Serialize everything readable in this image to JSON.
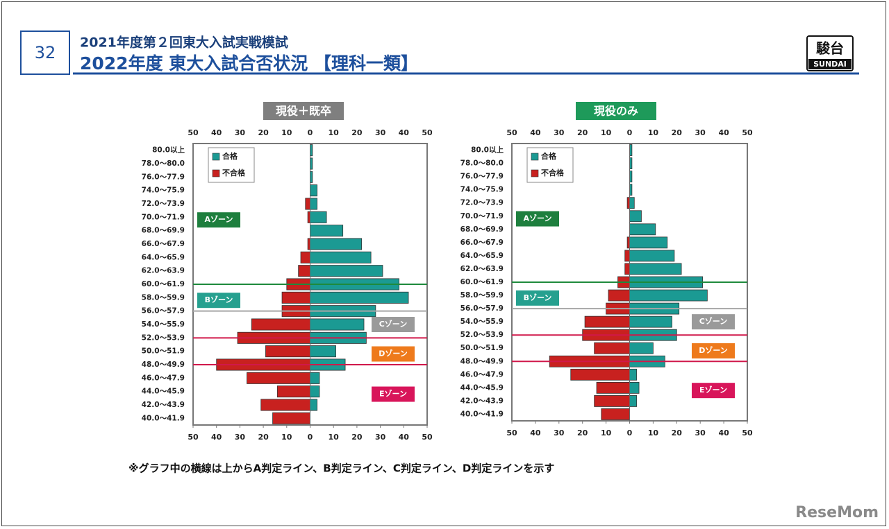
{
  "header": {
    "page_number": "32",
    "subtitle": "2021年度第２回東大入試実戦模試",
    "title": "2022年度 東大入試合否状況 【理科一類】"
  },
  "logo": {
    "main": "駿台",
    "sub": "SUNDAI"
  },
  "chart_data": [
    {
      "type": "pyramid",
      "title": "現役＋既卒",
      "categories": [
        "80.0以上",
        "78.0～80.0",
        "76.0～77.9",
        "74.0～75.9",
        "72.0～73.9",
        "70.0～71.9",
        "68.0～69.9",
        "66.0～67.9",
        "64.0～65.9",
        "62.0～63.9",
        "60.0～61.9",
        "58.0～59.9",
        "56.0～57.9",
        "54.0～55.9",
        "52.0～53.9",
        "50.0～51.9",
        "48.0～49.9",
        "46.0～47.9",
        "44.0～45.9",
        "42.0～43.9",
        "40.0～41.9"
      ],
      "series": [
        {
          "name": "合格",
          "color": "#1b9a93",
          "values": [
            1,
            1,
            1,
            3,
            3,
            7,
            14,
            22,
            26,
            31,
            38,
            42,
            28,
            23,
            24,
            11,
            15,
            4,
            4,
            3,
            0
          ]
        },
        {
          "name": "不合格",
          "color": "#c8211f",
          "values": [
            0,
            0,
            0,
            0,
            -2,
            -1,
            0,
            -1,
            -4,
            -5,
            -10,
            -12,
            -12,
            -25,
            -31,
            -19,
            -40,
            -27,
            -14,
            -21,
            -16
          ]
        }
      ],
      "xlim": [
        -50,
        50
      ],
      "xticks": [
        {
          "value": -50,
          "label": "50"
        },
        {
          "value": -40,
          "label": "40"
        },
        {
          "value": -30,
          "label": "30"
        },
        {
          "value": -20,
          "label": "20"
        },
        {
          "value": -10,
          "label": "10"
        },
        0,
        10,
        20,
        30,
        40,
        50
      ],
      "zones": [
        {
          "label": "Aゾーン",
          "color": "#1e7f3e"
        },
        {
          "label": "Bゾーン",
          "color": "#26a08f"
        },
        {
          "label": "Cゾーン",
          "color": "#9a9a9a"
        },
        {
          "label": "Dゾーン",
          "color": "#ee7a1c"
        },
        {
          "label": "Eゾーン",
          "color": "#d8155a"
        }
      ]
    },
    {
      "type": "pyramid",
      "title": "現役のみ",
      "categories": [
        "80.0以上",
        "78.0～80.0",
        "76.0～77.9",
        "74.0～75.9",
        "72.0～73.9",
        "70.0～71.9",
        "68.0～69.9",
        "66.0～67.9",
        "64.0～65.9",
        "62.0～63.9",
        "60.0～61.9",
        "58.0～59.9",
        "56.0～57.9",
        "54.0～55.9",
        "52.0～53.9",
        "50.0～51.9",
        "48.0～49.9",
        "46.0～47.9",
        "44.0～45.9",
        "42.0～43.9",
        "40.0～41.9"
      ],
      "series": [
        {
          "name": "合格",
          "color": "#1b9a93",
          "values": [
            1,
            1,
            1,
            1,
            2,
            5,
            11,
            16,
            19,
            22,
            31,
            33,
            21,
            18,
            20,
            10,
            15,
            3,
            4,
            3,
            0
          ]
        },
        {
          "name": "不合格",
          "color": "#c8211f",
          "values": [
            0,
            0,
            0,
            0,
            -1,
            0,
            0,
            -1,
            -2,
            -2,
            -5,
            -9,
            -10,
            -19,
            -20,
            -15,
            -34,
            -25,
            -14,
            -15,
            -12
          ]
        }
      ],
      "xlim": [
        -50,
        50
      ],
      "xticks": [
        {
          "value": -50,
          "label": "50"
        },
        {
          "value": -40,
          "label": "40"
        },
        {
          "value": -30,
          "label": "30"
        },
        {
          "value": -20,
          "label": "20"
        },
        {
          "value": -10,
          "label": "10"
        },
        0,
        10,
        20,
        30,
        40,
        50
      ],
      "zones": [
        {
          "label": "Aゾーン",
          "color": "#1e7f3e"
        },
        {
          "label": "Bゾーン",
          "color": "#26a08f"
        },
        {
          "label": "Cゾーン",
          "color": "#9a9a9a"
        },
        {
          "label": "Dゾーン",
          "color": "#ee7a1c"
        },
        {
          "label": "Eゾーン",
          "color": "#d8155a"
        }
      ]
    }
  ],
  "footnote": "※グラフ中の横線は上からA判定ライン、B判定ライン、C判定ライン、D判定ラインを示す",
  "watermark": "ReseMom"
}
